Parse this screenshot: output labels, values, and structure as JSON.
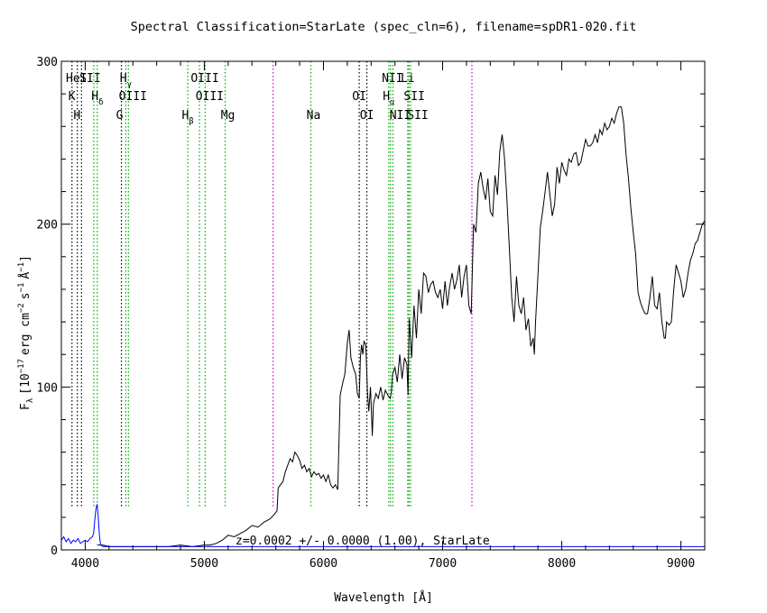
{
  "chart_data": {
    "type": "line",
    "title": "Spectral Classification=StarLate (spec_cln=6), filename=spDR1-020.fit",
    "xlabel": "Wavelength [Å]",
    "ylabel": "F_λ [10^-17 erg cm^-2 s^-1 Å^-1]",
    "ylabel_parts": {
      "main": "F",
      "lambda_sub": "λ",
      "bracket_text": "[10",
      "exp1": "−17",
      "units": "erg cm",
      "exp2": "−2",
      "units2": "s",
      "exp3": "−1",
      "angstrom": "Å",
      "exp4": "−1",
      "close": "]"
    },
    "xlim": [
      3800,
      9200
    ],
    "ylim": [
      0,
      300
    ],
    "x_ticks": [
      4000,
      5000,
      6000,
      7000,
      8000,
      9000
    ],
    "y_ticks": [
      0,
      100,
      200,
      300
    ],
    "annotation": "z=0.0002 +/- 0.0000 (1.00), StarLate",
    "annotation_color": "#1a1a9c",
    "series": [
      {
        "color": "#000000",
        "points": [
          [
            4100,
            3
          ],
          [
            4150,
            3
          ],
          [
            4200,
            2
          ],
          [
            4300,
            2
          ],
          [
            4400,
            2
          ],
          [
            4500,
            2
          ],
          [
            4600,
            2
          ],
          [
            4700,
            2
          ],
          [
            4800,
            3
          ],
          [
            4900,
            2
          ],
          [
            5000,
            3
          ],
          [
            5050,
            3
          ],
          [
            5100,
            4
          ],
          [
            5150,
            6
          ],
          [
            5200,
            9
          ],
          [
            5250,
            8
          ],
          [
            5300,
            10
          ],
          [
            5350,
            12
          ],
          [
            5400,
            15
          ],
          [
            5450,
            14
          ],
          [
            5500,
            17
          ],
          [
            5550,
            19
          ],
          [
            5590,
            22
          ],
          [
            5610,
            24
          ],
          [
            5620,
            38
          ],
          [
            5640,
            40
          ],
          [
            5660,
            42
          ],
          [
            5680,
            48
          ],
          [
            5700,
            52
          ],
          [
            5720,
            56
          ],
          [
            5740,
            54
          ],
          [
            5760,
            60
          ],
          [
            5780,
            58
          ],
          [
            5800,
            55
          ],
          [
            5820,
            50
          ],
          [
            5840,
            52
          ],
          [
            5860,
            48
          ],
          [
            5880,
            50
          ],
          [
            5900,
            45
          ],
          [
            5920,
            48
          ],
          [
            5940,
            46
          ],
          [
            5960,
            47
          ],
          [
            5980,
            44
          ],
          [
            6000,
            46
          ],
          [
            6020,
            42
          ],
          [
            6040,
            46
          ],
          [
            6060,
            40
          ],
          [
            6080,
            38
          ],
          [
            6100,
            40
          ],
          [
            6120,
            37
          ],
          [
            6140,
            95
          ],
          [
            6160,
            102
          ],
          [
            6180,
            108
          ],
          [
            6200,
            127
          ],
          [
            6215,
            135
          ],
          [
            6230,
            118
          ],
          [
            6250,
            112
          ],
          [
            6270,
            108
          ],
          [
            6285,
            96
          ],
          [
            6300,
            93
          ],
          [
            6310,
            118
          ],
          [
            6320,
            126
          ],
          [
            6330,
            120
          ],
          [
            6340,
            128
          ],
          [
            6355,
            126
          ],
          [
            6370,
            96
          ],
          [
            6380,
            85
          ],
          [
            6395,
            100
          ],
          [
            6410,
            70
          ],
          [
            6420,
            90
          ],
          [
            6440,
            96
          ],
          [
            6460,
            93
          ],
          [
            6480,
            100
          ],
          [
            6500,
            92
          ],
          [
            6520,
            98
          ],
          [
            6540,
            95
          ],
          [
            6560,
            93
          ],
          [
            6570,
            97
          ],
          [
            6580,
            108
          ],
          [
            6600,
            112
          ],
          [
            6620,
            103
          ],
          [
            6640,
            120
          ],
          [
            6660,
            105
          ],
          [
            6680,
            118
          ],
          [
            6700,
            114
          ],
          [
            6710,
            95
          ],
          [
            6720,
            142
          ],
          [
            6740,
            118
          ],
          [
            6760,
            150
          ],
          [
            6780,
            130
          ],
          [
            6800,
            160
          ],
          [
            6820,
            145
          ],
          [
            6840,
            170
          ],
          [
            6860,
            168
          ],
          [
            6880,
            158
          ],
          [
            6900,
            163
          ],
          [
            6920,
            165
          ],
          [
            6940,
            158
          ],
          [
            6960,
            155
          ],
          [
            6980,
            160
          ],
          [
            7000,
            148
          ],
          [
            7020,
            165
          ],
          [
            7040,
            150
          ],
          [
            7060,
            162
          ],
          [
            7080,
            170
          ],
          [
            7100,
            160
          ],
          [
            7120,
            166
          ],
          [
            7140,
            175
          ],
          [
            7160,
            155
          ],
          [
            7180,
            168
          ],
          [
            7200,
            175
          ],
          [
            7220,
            150
          ],
          [
            7240,
            145
          ],
          [
            7260,
            200
          ],
          [
            7280,
            195
          ],
          [
            7300,
            225
          ],
          [
            7320,
            232
          ],
          [
            7340,
            222
          ],
          [
            7360,
            215
          ],
          [
            7380,
            228
          ],
          [
            7400,
            208
          ],
          [
            7420,
            205
          ],
          [
            7440,
            230
          ],
          [
            7460,
            218
          ],
          [
            7480,
            245
          ],
          [
            7500,
            255
          ],
          [
            7520,
            240
          ],
          [
            7540,
            215
          ],
          [
            7560,
            185
          ],
          [
            7580,
            155
          ],
          [
            7600,
            140
          ],
          [
            7620,
            168
          ],
          [
            7640,
            150
          ],
          [
            7660,
            145
          ],
          [
            7680,
            155
          ],
          [
            7700,
            135
          ],
          [
            7720,
            142
          ],
          [
            7740,
            125
          ],
          [
            7760,
            130
          ],
          [
            7770,
            120
          ],
          [
            7780,
            140
          ],
          [
            7800,
            168
          ],
          [
            7820,
            198
          ],
          [
            7840,
            208
          ],
          [
            7860,
            220
          ],
          [
            7880,
            232
          ],
          [
            7900,
            218
          ],
          [
            7920,
            205
          ],
          [
            7940,
            212
          ],
          [
            7960,
            235
          ],
          [
            7980,
            225
          ],
          [
            8000,
            238
          ],
          [
            8020,
            233
          ],
          [
            8040,
            230
          ],
          [
            8060,
            240
          ],
          [
            8080,
            238
          ],
          [
            8100,
            243
          ],
          [
            8120,
            244
          ],
          [
            8140,
            236
          ],
          [
            8160,
            238
          ],
          [
            8180,
            245
          ],
          [
            8200,
            252
          ],
          [
            8220,
            248
          ],
          [
            8240,
            248
          ],
          [
            8260,
            250
          ],
          [
            8280,
            255
          ],
          [
            8300,
            250
          ],
          [
            8320,
            258
          ],
          [
            8340,
            255
          ],
          [
            8360,
            262
          ],
          [
            8380,
            258
          ],
          [
            8400,
            260
          ],
          [
            8420,
            265
          ],
          [
            8440,
            262
          ],
          [
            8460,
            268
          ],
          [
            8480,
            272
          ],
          [
            8500,
            272
          ],
          [
            8520,
            262
          ],
          [
            8540,
            242
          ],
          [
            8560,
            228
          ],
          [
            8580,
            210
          ],
          [
            8600,
            195
          ],
          [
            8620,
            182
          ],
          [
            8640,
            158
          ],
          [
            8660,
            152
          ],
          [
            8680,
            148
          ],
          [
            8700,
            145
          ],
          [
            8720,
            145
          ],
          [
            8740,
            155
          ],
          [
            8760,
            168
          ],
          [
            8780,
            150
          ],
          [
            8800,
            148
          ],
          [
            8820,
            158
          ],
          [
            8840,
            140
          ],
          [
            8860,
            130
          ],
          [
            8870,
            130
          ],
          [
            8880,
            140
          ],
          [
            8900,
            138
          ],
          [
            8920,
            140
          ],
          [
            8940,
            160
          ],
          [
            8960,
            175
          ],
          [
            8980,
            170
          ],
          [
            9000,
            165
          ],
          [
            9020,
            155
          ],
          [
            9040,
            160
          ],
          [
            9060,
            170
          ],
          [
            9080,
            178
          ],
          [
            9100,
            182
          ],
          [
            9120,
            188
          ],
          [
            9140,
            190
          ],
          [
            9160,
            195
          ],
          [
            9180,
            200
          ],
          [
            9200,
            202
          ]
        ]
      },
      {
        "color": "#0000ff",
        "points": [
          [
            3800,
            6
          ],
          [
            3820,
            8
          ],
          [
            3840,
            5
          ],
          [
            3860,
            7
          ],
          [
            3880,
            4
          ],
          [
            3900,
            6
          ],
          [
            3920,
            5
          ],
          [
            3940,
            7
          ],
          [
            3960,
            4
          ],
          [
            3980,
            5
          ],
          [
            4000,
            6
          ],
          [
            4020,
            5
          ],
          [
            4040,
            7
          ],
          [
            4060,
            8
          ],
          [
            4070,
            10
          ],
          [
            4080,
            18
          ],
          [
            4090,
            25
          ],
          [
            4100,
            28
          ],
          [
            4110,
            20
          ],
          [
            4120,
            8
          ],
          [
            4130,
            3
          ],
          [
            4150,
            2
          ],
          [
            4200,
            2
          ],
          [
            4300,
            2
          ],
          [
            4400,
            2
          ],
          [
            4500,
            2
          ],
          [
            4600,
            2
          ],
          [
            4700,
            2
          ],
          [
            4800,
            2
          ],
          [
            4900,
            2
          ],
          [
            5000,
            2
          ],
          [
            5500,
            2
          ],
          [
            6000,
            2
          ],
          [
            6500,
            2
          ],
          [
            7000,
            2
          ],
          [
            7500,
            2
          ],
          [
            8000,
            2
          ],
          [
            8500,
            2
          ],
          [
            9000,
            2
          ],
          [
            9200,
            2
          ]
        ]
      }
    ],
    "line_markers": [
      {
        "wl": 3889,
        "color": "#000000",
        "label": "HeI",
        "row": 0,
        "dx": 5
      },
      {
        "wl": 3934,
        "color": "#000000",
        "label": "K",
        "row": 1,
        "dx": -6
      },
      {
        "wl": 3969,
        "color": "#000000",
        "label": "H",
        "row": 2,
        "dx": -5
      },
      {
        "wl": 4072,
        "color": "#00aa00",
        "label": "SII",
        "row": 0,
        "dx": -4
      },
      {
        "wl": 4102,
        "color": "#00aa00",
        "label": "H",
        "sub": "δ",
        "row": 1,
        "dx": 0
      },
      {
        "wl": 4304,
        "color": "#000000",
        "label": "G",
        "row": 2,
        "dx": -2
      },
      {
        "wl": 4341,
        "color": "#00aa00",
        "label": "H",
        "sub": "γ",
        "row": 0,
        "dx": 0
      },
      {
        "wl": 4363,
        "color": "#00aa00",
        "label": "OIII",
        "row": 1,
        "dx": 5
      },
      {
        "wl": 4861,
        "color": "#00aa00",
        "label": "H",
        "sub": "β",
        "row": 2,
        "dx": 0
      },
      {
        "wl": 4959,
        "color": "#00aa00",
        "label": "OIII",
        "row": 0,
        "dx": 6
      },
      {
        "wl": 5007,
        "color": "#00aa00",
        "label": "OIII",
        "row": 1,
        "dx": 5
      },
      {
        "wl": 5175,
        "color": "#00aa00",
        "label": "Mg",
        "row": 2,
        "dx": 3
      },
      {
        "wl": 5577,
        "color": "#cc00cc",
        "label": "",
        "row": -1,
        "dx": 0
      },
      {
        "wl": 5894,
        "color": "#00aa00",
        "label": "Na",
        "row": 2,
        "dx": 3
      },
      {
        "wl": 6300,
        "color": "#000000",
        "label": "OI",
        "row": 1,
        "dx": 0
      },
      {
        "wl": 6364,
        "color": "#000000",
        "label": "OI",
        "row": 2,
        "dx": 0
      },
      {
        "wl": 6548,
        "color": "#00aa00",
        "label": "NII",
        "row": 0,
        "dx": 4
      },
      {
        "wl": 6563,
        "color": "#00aa00",
        "label": "H",
        "sub": "α",
        "row": 1,
        "dx": -2
      },
      {
        "wl": 6583,
        "color": "#00aa00",
        "label": "NII",
        "row": 2,
        "dx": 8
      },
      {
        "wl": 6707,
        "color": "#00aa00",
        "label": "Li",
        "row": 0,
        "dx": 0
      },
      {
        "wl": 6717,
        "color": "#00aa00",
        "label": "SII",
        "row": 1,
        "dx": 6
      },
      {
        "wl": 6731,
        "color": "#00aa00",
        "label": "SII",
        "row": 2,
        "dx": 8
      },
      {
        "wl": 7246,
        "color": "#cc00cc",
        "label": "",
        "row": -1,
        "dx": 0
      }
    ]
  }
}
